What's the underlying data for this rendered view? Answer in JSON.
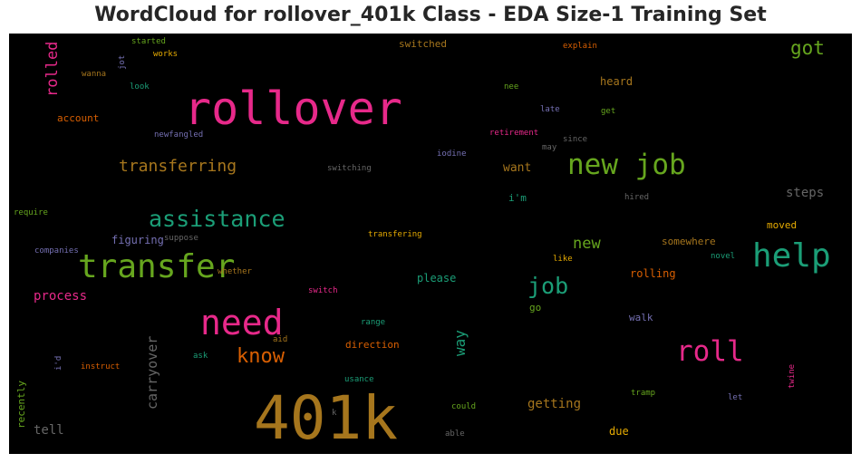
{
  "title": "WordCloud for rollover_401k Class - EDA Size-1 Training Set",
  "palette": {
    "magenta": "#e7298a",
    "green": "#66a61e",
    "teal": "#1b9e77",
    "orange": "#d95f02",
    "olive": "#a6761d",
    "purple": "#7570b3",
    "gold": "#e6ab02",
    "gray": "#666666"
  },
  "words": [
    "rollover",
    "401k",
    "new job",
    "help",
    "transfer",
    "need",
    "assistance",
    "roll",
    "transferring",
    "know",
    "job",
    "got",
    "rolled",
    "carryover",
    "way",
    "new",
    "process",
    "steps",
    "getting",
    "want",
    "account",
    "switched",
    "heard",
    "figuring",
    "rolling",
    "please",
    "direction",
    "walk",
    "somewhere",
    "moved",
    "tell",
    "recently",
    "i'm",
    "go",
    "due",
    "explain",
    "nee",
    "late",
    "get",
    "retirement",
    "may",
    "since",
    "iodine",
    "switching",
    "newfangled",
    "look",
    "works",
    "started",
    "wanna",
    "jot",
    "hired",
    "require",
    "companies",
    "suppose",
    "transfering",
    "like",
    "novel",
    "whether",
    "switch",
    "range",
    "aid",
    "ask",
    "i'd",
    "instruct",
    "usance",
    "tramp",
    "let",
    "twine",
    "could",
    "k",
    "able"
  ]
}
